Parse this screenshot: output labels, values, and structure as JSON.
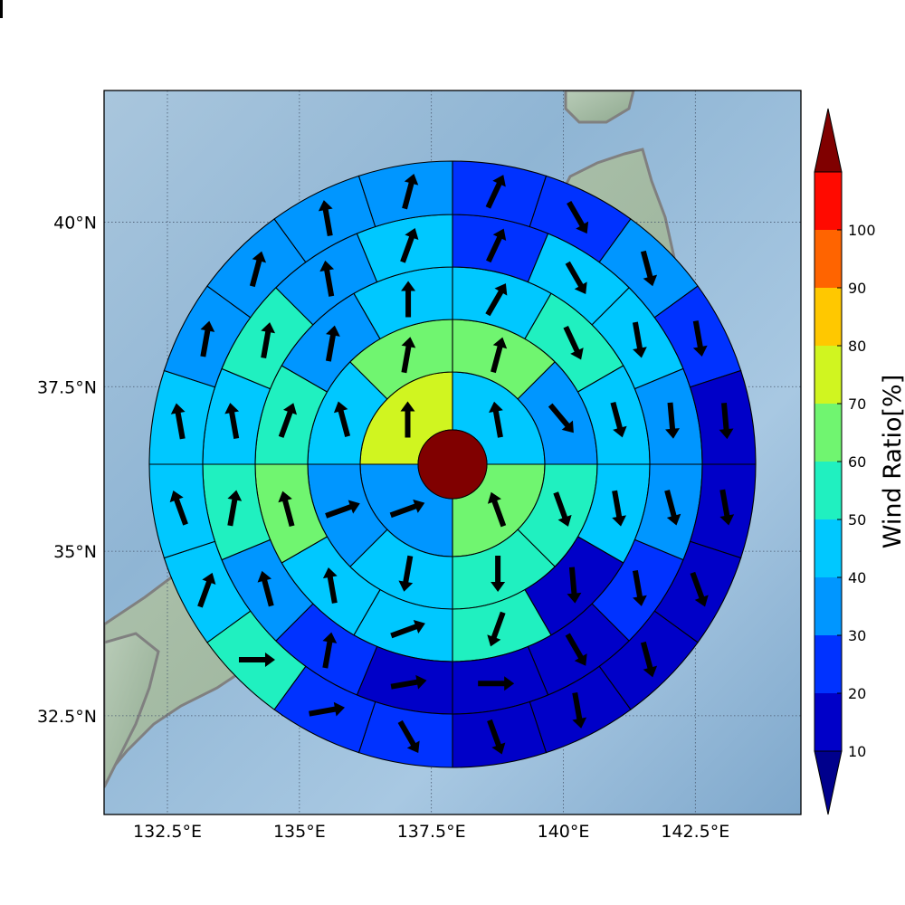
{
  "map": {
    "lon_range": [
      131.3,
      144.5
    ],
    "lat_range": [
      31.0,
      42.0
    ],
    "lon_ticks": [
      {
        "value": 132.5,
        "label": "132.5°E"
      },
      {
        "value": 135.0,
        "label": "135°E"
      },
      {
        "value": 137.5,
        "label": "137.5°E"
      },
      {
        "value": 140.0,
        "label": "140°E"
      },
      {
        "value": 142.5,
        "label": "142.5°E"
      }
    ],
    "lat_ticks": [
      {
        "value": 40.0,
        "label": "40°N"
      },
      {
        "value": 37.5,
        "label": "37.5°N"
      },
      {
        "value": 35.0,
        "label": "35°N"
      },
      {
        "value": 32.5,
        "label": "32.5°N"
      }
    ],
    "gridlines": true
  },
  "colorbar": {
    "title": "Wind Ratio[%]",
    "levels": [
      10,
      20,
      30,
      40,
      50,
      60,
      70,
      80,
      90,
      100
    ],
    "level_labels": [
      "10",
      "20",
      "30",
      "40",
      "50",
      "60",
      "70",
      "80",
      "90",
      "100"
    ],
    "colors": [
      "#0000c8",
      "#0032ff",
      "#0096ff",
      "#00c8ff",
      "#20f0c0",
      "#70f570",
      "#d0f520",
      "#ffc800",
      "#ff6400",
      "#ff0a00"
    ],
    "under_color": "#00008c",
    "over_color": "#800000",
    "extend": "both"
  },
  "chart_data": {
    "type": "polar-grid",
    "center": {
      "lon": 137.8,
      "lat": 36.2
    },
    "rings": [
      {
        "ring": 1,
        "sectors": 4,
        "direction_deg": [
          90,
          180,
          270,
          0
        ],
        "ratio": [
          45,
          65,
          35,
          75
        ]
      },
      {
        "ring": 2,
        "sectors": 8,
        "ratio": [
          65,
          35,
          55,
          55,
          45,
          35,
          45,
          65
        ]
      },
      {
        "ring": 3,
        "sectors": 12,
        "ratio": [
          45,
          55,
          45,
          45,
          15,
          55,
          45,
          45,
          65,
          55,
          35,
          45
        ]
      },
      {
        "ring": 4,
        "sectors": 16,
        "ratio": [
          25,
          45,
          45,
          35,
          35,
          25,
          15,
          15,
          15,
          25,
          35,
          55,
          45,
          55,
          35,
          45
        ]
      },
      {
        "ring": 5,
        "sectors": 20,
        "ratio": [
          25,
          25,
          35,
          25,
          15,
          15,
          15,
          15,
          15,
          15,
          25,
          25,
          55,
          45,
          45,
          45,
          35,
          35,
          35,
          35
        ]
      },
      {
        "ring": 6,
        "sectors": 24,
        "ratio": [
          35,
          25,
          25,
          15,
          15,
          15,
          15,
          15,
          15,
          15,
          15,
          15,
          15,
          25,
          35,
          45,
          45,
          45,
          45,
          45,
          35,
          35,
          35,
          15
        ]
      }
    ],
    "center_value": 100,
    "arrow_direction_deg": {
      "ring1": [
        350,
        340,
        70,
        0
      ],
      "ring2": [
        15,
        140,
        160,
        180,
        190,
        70,
        345,
        10
      ],
      "ring3": [
        30,
        155,
        165,
        170,
        175,
        200,
        70,
        350,
        345,
        20,
        10,
        0
      ],
      "ring4": [
        25,
        150,
        170,
        175,
        165,
        170,
        150,
        90,
        80,
        10,
        345,
        10,
        350,
        10,
        350,
        20
      ],
      "ring5": [
        25,
        150,
        165,
        170,
        175,
        170,
        160,
        165,
        170,
        160,
        150,
        80,
        90,
        20,
        340,
        350,
        10,
        15,
        350,
        15
      ],
      "ring6": [
        340,
        95,
        175,
        170,
        175,
        175,
        170,
        160,
        165,
        165,
        160,
        160,
        165,
        150,
        340,
        350,
        345,
        10,
        340,
        350,
        350,
        350,
        10,
        155
      ]
    }
  }
}
